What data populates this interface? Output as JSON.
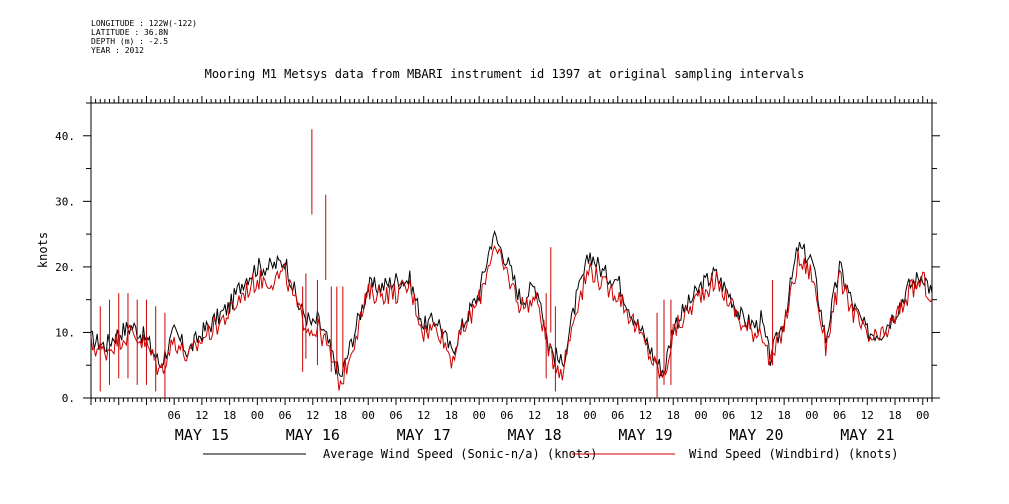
{
  "header": {
    "longitude": "LONGITUDE : 122W(-122)",
    "latitude": "LATITUDE : 36.8N",
    "depth": "DEPTH (m) : -2.5",
    "year": "YEAR : 2012"
  },
  "chart_data": {
    "type": "line",
    "title": "Mooring M1 Metsys data from MBARI instrument id 1397 at original sampling intervals",
    "xlabel": "",
    "ylabel": "knots",
    "ylim": [
      0,
      45
    ],
    "yticks": [
      0,
      10,
      20,
      30,
      40
    ],
    "ytick_labels": [
      "0.",
      "10.",
      "20.",
      "30.",
      "40."
    ],
    "x_unit": "hours since May 15 00:00 (2012)",
    "xlim": [
      -12,
      170
    ],
    "x_hour_ticks": [
      {
        "x": 6,
        "label": "06"
      },
      {
        "x": 12,
        "label": "12"
      },
      {
        "x": 18,
        "label": "18"
      },
      {
        "x": 24,
        "label": "00"
      },
      {
        "x": 30,
        "label": "06"
      },
      {
        "x": 36,
        "label": "12"
      },
      {
        "x": 42,
        "label": "18"
      },
      {
        "x": 48,
        "label": "00"
      },
      {
        "x": 54,
        "label": "06"
      },
      {
        "x": 60,
        "label": "12"
      },
      {
        "x": 66,
        "label": "18"
      },
      {
        "x": 72,
        "label": "00"
      },
      {
        "x": 78,
        "label": "06"
      },
      {
        "x": 84,
        "label": "12"
      },
      {
        "x": 90,
        "label": "18"
      },
      {
        "x": 96,
        "label": "00"
      },
      {
        "x": 102,
        "label": "06"
      },
      {
        "x": 108,
        "label": "12"
      },
      {
        "x": 114,
        "label": "18"
      },
      {
        "x": 120,
        "label": "00"
      },
      {
        "x": 126,
        "label": "06"
      },
      {
        "x": 132,
        "label": "12"
      },
      {
        "x": 138,
        "label": "18"
      },
      {
        "x": 144,
        "label": "00"
      },
      {
        "x": 150,
        "label": "06"
      },
      {
        "x": 156,
        "label": "12"
      },
      {
        "x": 162,
        "label": "18"
      },
      {
        "x": 168,
        "label": "00"
      }
    ],
    "x_day_labels": [
      {
        "x": 12,
        "label": "MAY 15"
      },
      {
        "x": 36,
        "label": "MAY 16"
      },
      {
        "x": 60,
        "label": "MAY 17"
      },
      {
        "x": 84,
        "label": "MAY 18"
      },
      {
        "x": 108,
        "label": "MAY 19"
      },
      {
        "x": 132,
        "label": "MAY 20"
      },
      {
        "x": 156,
        "label": "MAY 21"
      }
    ],
    "series": [
      {
        "name": "Average Wind Speed (Sonic-n/a) (knots)",
        "color": "#000000",
        "x": [
          -12,
          -9,
          -6,
          -3,
          0,
          3,
          6,
          9,
          12,
          15,
          18,
          21,
          24,
          27,
          30,
          33,
          36,
          37,
          39,
          41,
          42,
          45,
          48,
          51,
          54,
          57,
          60,
          63,
          66,
          69,
          72,
          75,
          78,
          81,
          84,
          85,
          87,
          90,
          93,
          96,
          99,
          102,
          105,
          108,
          110,
          112,
          114,
          117,
          120,
          123,
          126,
          129,
          132,
          133,
          135,
          138,
          141,
          144,
          147,
          150,
          153,
          156,
          159,
          162,
          165,
          168,
          170
        ],
        "y": [
          9,
          8,
          10,
          11,
          9,
          5,
          10,
          7,
          10,
          12,
          14,
          18,
          20,
          20,
          21,
          14,
          11,
          12,
          9,
          5,
          3,
          10,
          17,
          17,
          18,
          18,
          11,
          12,
          7,
          12,
          16,
          25,
          21,
          15,
          17,
          16,
          8,
          5,
          15,
          22,
          19,
          18,
          13,
          9,
          6,
          4,
          11,
          14,
          17,
          19,
          16,
          12,
          11,
          12,
          6,
          12,
          23,
          21,
          9,
          20,
          14,
          10,
          10,
          13,
          17,
          19,
          16
        ]
      },
      {
        "name": "Wind Speed (Windbird) (knots)",
        "color": "#cc0000",
        "x": [
          -12,
          -9,
          -6,
          -3,
          0,
          3,
          6,
          9,
          12,
          15,
          18,
          21,
          24,
          27,
          30,
          33,
          36,
          37,
          39,
          41,
          42,
          45,
          48,
          51,
          54,
          57,
          60,
          63,
          66,
          69,
          72,
          75,
          78,
          81,
          84,
          85,
          87,
          90,
          93,
          96,
          99,
          102,
          105,
          108,
          110,
          112,
          114,
          117,
          120,
          123,
          126,
          129,
          132,
          133,
          135,
          138,
          141,
          144,
          147,
          150,
          153,
          156,
          159,
          162,
          165,
          168,
          170
        ],
        "y": [
          8,
          7,
          9,
          10,
          8,
          4,
          9,
          6,
          9,
          11,
          13,
          16,
          18,
          18,
          19,
          13,
          10,
          11,
          8,
          4,
          2,
          9,
          16,
          16,
          16,
          17,
          10,
          11,
          6,
          11,
          15,
          23,
          19,
          14,
          15,
          14,
          7,
          4,
          14,
          20,
          17,
          16,
          12,
          8,
          5,
          3,
          10,
          13,
          16,
          18,
          15,
          11,
          10,
          11,
          5,
          11,
          21,
          19,
          8,
          18,
          13,
          9,
          9,
          12,
          16,
          18,
          15
        ]
      }
    ],
    "spikes": [
      {
        "x": 35.8,
        "y": 41
      },
      {
        "x": 38.8,
        "y": 31
      },
      {
        "x": 87.5,
        "y": 23
      },
      {
        "x": 34.5,
        "y": 19
      },
      {
        "x": 33.8,
        "y": 17
      },
      {
        "x": 37.0,
        "y": 18
      },
      {
        "x": 40.0,
        "y": 17
      },
      {
        "x": 41.2,
        "y": 17
      },
      {
        "x": 42.5,
        "y": 17
      },
      {
        "x": 135.5,
        "y": 18
      },
      {
        "x": -10,
        "y": 14
      },
      {
        "x": -8,
        "y": 15
      },
      {
        "x": -6,
        "y": 16
      },
      {
        "x": -4,
        "y": 16
      },
      {
        "x": -2,
        "y": 15
      },
      {
        "x": 0,
        "y": 15
      },
      {
        "x": 2,
        "y": 14
      },
      {
        "x": 4,
        "y": 13
      },
      {
        "x": 86.5,
        "y": 16
      },
      {
        "x": 88.5,
        "y": 14
      },
      {
        "x": 110.5,
        "y": 13
      },
      {
        "x": 112.0,
        "y": 15
      },
      {
        "x": 113.5,
        "y": 15
      }
    ]
  }
}
